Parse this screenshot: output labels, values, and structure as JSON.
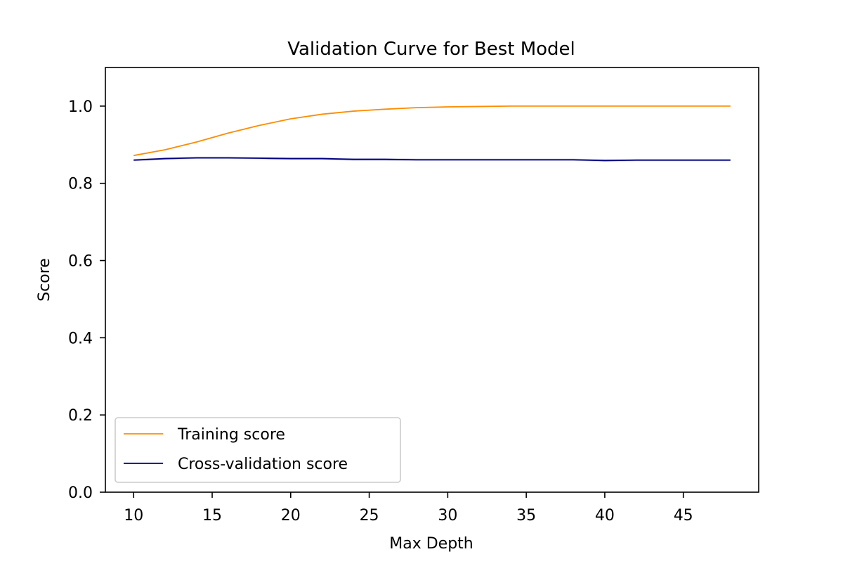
{
  "chart_data": {
    "type": "line",
    "title": "Validation Curve for Best Model",
    "xlabel": "Max Depth",
    "ylabel": "Score",
    "xlim": [
      8.2,
      49.8
    ],
    "ylim": [
      0.0,
      1.1
    ],
    "xticks": [
      10,
      15,
      20,
      25,
      30,
      35,
      40,
      45
    ],
    "yticks": [
      0.0,
      0.2,
      0.4,
      0.6,
      0.8,
      1.0
    ],
    "ytick_labels": [
      "0.0",
      "0.2",
      "0.4",
      "0.6",
      "0.8",
      "1.0"
    ],
    "grid": false,
    "legend_position": "lower-left",
    "x": [
      10,
      12,
      14,
      16,
      18,
      20,
      22,
      24,
      26,
      28,
      30,
      32,
      34,
      36,
      38,
      40,
      42,
      44,
      46,
      48
    ],
    "series": [
      {
        "name": "Training score",
        "color": "#ff8c00",
        "values": [
          0.872,
          0.887,
          0.907,
          0.93,
          0.95,
          0.967,
          0.979,
          0.987,
          0.992,
          0.996,
          0.998,
          0.999,
          1.0,
          1.0,
          1.0,
          1.0,
          1.0,
          1.0,
          1.0,
          1.0
        ],
        "band": 0.001
      },
      {
        "name": "Cross-validation score",
        "color": "#000080",
        "values": [
          0.86,
          0.864,
          0.866,
          0.866,
          0.865,
          0.864,
          0.864,
          0.862,
          0.862,
          0.861,
          0.861,
          0.861,
          0.861,
          0.861,
          0.861,
          0.859,
          0.86,
          0.86,
          0.86,
          0.86
        ],
        "band": 0.003
      }
    ]
  }
}
